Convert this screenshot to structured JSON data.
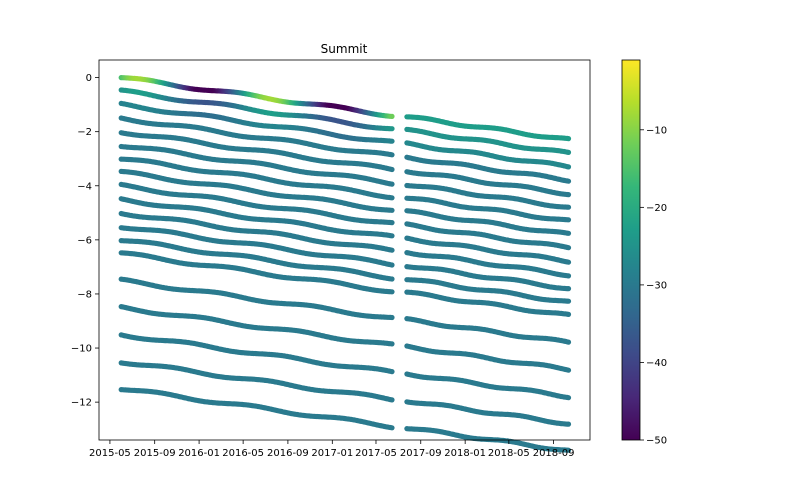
{
  "chart_data": {
    "type": "scatter",
    "title": "Summit",
    "xlabel": "",
    "ylabel": "",
    "x_ticks": [
      "2015-05",
      "2015-09",
      "2016-01",
      "2016-05",
      "2016-09",
      "2017-01",
      "2017-05",
      "2017-09",
      "2018-01",
      "2018-05",
      "2018-09"
    ],
    "y_ticks": [
      0,
      -2,
      -4,
      -6,
      -8,
      -10,
      -12
    ],
    "xlim": [
      "2015-04-01",
      "2018-12-10"
    ],
    "ylim": [
      -13.4,
      0.65
    ],
    "grid": false,
    "colorbar": {
      "ticks": [
        -10,
        -20,
        -30,
        -40,
        -50
      ],
      "range": [
        -50,
        -1
      ],
      "colormap": "viridis"
    },
    "segments": [
      {
        "start": "2015-06-01",
        "end": "2017-06-15"
      },
      {
        "start": "2017-07-25",
        "end": "2018-10-15"
      }
    ],
    "depth_offsets": [
      0,
      0.5,
      1,
      1.5,
      2,
      2.5,
      3,
      3.5,
      4,
      4.5,
      5,
      5.5,
      6,
      6.5,
      7.5,
      8.5,
      9.5,
      10.5,
      11.5
    ],
    "series_trend": "each series starts near its depth offset on 2015-06-01 and declines by about 1.4 m by 2017-06; the second segment starts about 1.45 m below the offset and declines a further ~0.9 m by 2018-10",
    "color_notes": "near-surface series show warm colors (-5 to -15) in summer 2015 and 2016 and cold colors (-40 to -50) in winter 2015/16; deeper series are nearly uniform around -30"
  }
}
